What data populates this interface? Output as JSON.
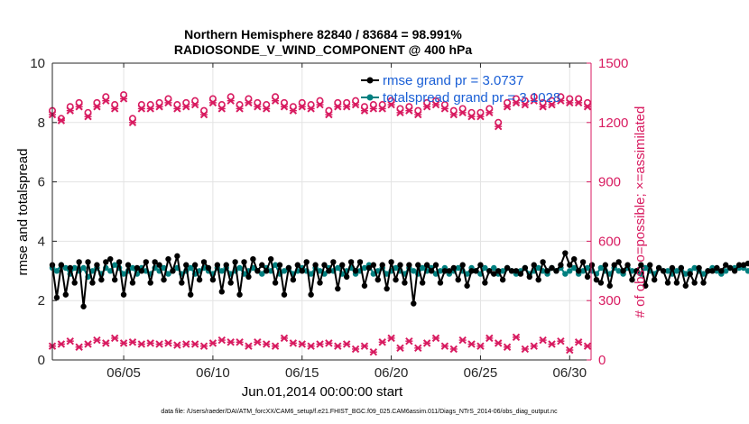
{
  "chart_data": {
    "type": "line",
    "title": "Northern Hemisphere 82840 / 83684 = 98.991%",
    "subtitle": "RADIOSONDE_V_WIND_COMPONENT @ 400 hPa",
    "xlabel": "Jun.01,2014 00:00:00 start",
    "ylabel": "rmse and totalspread",
    "ylabel_right": "# of obs: o=possible; ×=assimilated",
    "footnote": "data file: /Users/raeder/DAI/ATM_forcXX/CAM6_setup/f.e21.FHIST_BGC.f09_025.CAM6assim.011/Diags_NTrS_2014-06/obs_diag_output.nc",
    "xlim": [
      1,
      31.2
    ],
    "ylim": [
      0,
      10
    ],
    "ylim_right": [
      0,
      1500
    ],
    "x_ticks": [
      5,
      10,
      15,
      20,
      25,
      30
    ],
    "x_tick_labels": [
      "06/05",
      "06/10",
      "06/15",
      "06/20",
      "06/25",
      "06/30"
    ],
    "y_ticks": [
      0,
      2,
      4,
      6,
      8,
      10
    ],
    "y_tick_labels": [
      "0",
      "2",
      "4",
      "6",
      "8",
      "10"
    ],
    "y_right_ticks": [
      0,
      300,
      600,
      900,
      1200,
      1500
    ],
    "y_right_tick_labels": [
      "0",
      "300",
      "600",
      "900",
      "1200",
      "1500"
    ],
    "grid": true,
    "legend": [
      {
        "label": "rmse grand pr = 3.0737",
        "color": "#000000"
      },
      {
        "label": "totalspread grand pr = 3.1028",
        "color": "#008080"
      }
    ],
    "colors": {
      "rmse": "#000000",
      "spread": "#008080",
      "obs": "#d81b60",
      "axis_right": "#d81b60",
      "legend_text": "#1a5fd6"
    },
    "x_start": 1,
    "x_step": 0.25,
    "series": [
      {
        "name": "rmse",
        "axis": "left",
        "values": [
          3.2,
          2.1,
          3.2,
          2.2,
          3.1,
          2.6,
          3.3,
          1.8,
          3.3,
          2.6,
          3.2,
          2.7,
          3.3,
          3.4,
          2.7,
          3.3,
          2.2,
          3.2,
          2.6,
          3.1,
          3.0,
          3.3,
          2.6,
          3.3,
          3.2,
          2.7,
          3.4,
          3.0,
          3.5,
          2.6,
          3.2,
          2.2,
          3.2,
          2.7,
          3.3,
          3.1,
          2.7,
          3.2,
          2.3,
          3.2,
          2.6,
          3.3,
          2.2,
          3.3,
          2.8,
          3.4,
          3.0,
          3.2,
          3.0,
          3.4,
          2.6,
          3.2,
          2.2,
          3.1,
          2.7,
          3.2,
          3.0,
          3.3,
          2.2,
          3.2,
          2.6,
          3.2,
          3.0,
          3.3,
          2.4,
          3.2,
          2.8,
          3.3,
          3.0,
          3.3,
          2.5,
          3.1,
          3.2,
          2.7,
          3.2,
          2.4,
          3.3,
          2.7,
          3.2,
          2.6,
          3.2,
          1.9,
          3.2,
          2.6,
          3.2,
          3.0,
          3.2,
          2.6,
          3.0,
          3.0,
          3.1,
          2.7,
          3.2,
          2.5,
          3.0,
          3.0,
          3.2,
          2.6,
          3.0,
          2.9,
          3.0,
          2.7,
          3.1,
          3.0,
          3.0,
          2.9,
          3.1,
          2.8,
          3.2,
          2.7,
          3.3,
          3.0,
          3.1,
          3.0,
          3.2,
          3.6,
          3.2,
          3.4,
          3.0,
          3.3,
          2.8,
          3.2,
          2.7,
          2.6,
          3.2,
          2.5,
          3.2,
          3.3,
          3.0,
          3.2,
          2.7,
          3.0,
          3.2,
          2.5,
          3.2,
          2.7,
          3.1,
          3.0,
          2.6,
          3.1,
          2.6,
          3.1,
          2.5,
          2.9,
          2.6,
          3.1,
          2.6,
          3.0,
          3.0,
          3.1,
          3.0,
          3.2,
          3.1,
          3.0,
          3.2,
          3.2,
          3.25
        ]
      },
      {
        "name": "totalspread",
        "axis": "left",
        "values": [
          3.1,
          3.0,
          3.2,
          3.1,
          2.9,
          3.1,
          3.0,
          3.1,
          2.8,
          3.0,
          3.1,
          2.9,
          3.1,
          3.0,
          3.2,
          3.1,
          2.9,
          3.0,
          3.1,
          2.9,
          3.1,
          3.0,
          2.9,
          3.1,
          3.0,
          3.1,
          2.9,
          3.0,
          3.1,
          2.9,
          3.0,
          3.1,
          2.9,
          3.0,
          3.1,
          3.0,
          2.9,
          3.1,
          3.0,
          3.1,
          2.9,
          3.0,
          3.1,
          2.9,
          3.0,
          3.1,
          3.0,
          2.9,
          3.1,
          3.0,
          3.2,
          2.9,
          3.0,
          3.1,
          2.9,
          3.0,
          3.1,
          3.0,
          2.9,
          3.1,
          3.0,
          2.9,
          3.1,
          3.0,
          3.1,
          2.9,
          3.0,
          3.1,
          2.9,
          3.0,
          3.1,
          3.2,
          2.9,
          3.0,
          3.1,
          2.9,
          3.0,
          3.1,
          3.0,
          2.9,
          3.1,
          3.0,
          2.9,
          3.1,
          3.0,
          3.1,
          2.9,
          3.0,
          3.1,
          2.9,
          3.0,
          3.1,
          3.0,
          2.9,
          3.1,
          3.0,
          2.9,
          3.1,
          3.0,
          3.1,
          2.9,
          3.0,
          3.1,
          3.0,
          2.9,
          3.0,
          3.1,
          2.9,
          3.0,
          3.1,
          3.0,
          2.9,
          3.1,
          3.0,
          3.1,
          2.9,
          3.0,
          3.1,
          2.9,
          3.0,
          3.1,
          3.0,
          2.9,
          3.1,
          3.0,
          2.9,
          3.1,
          3.0,
          2.9,
          3.1,
          3.0,
          3.0,
          2.9,
          3.1,
          3.0,
          2.9,
          3.1,
          3.0,
          3.0,
          2.9,
          3.0,
          3.1,
          2.9,
          3.0,
          3.1,
          3.0,
          2.9,
          3.0,
          3.1,
          3.0,
          2.9,
          3.0,
          3.1,
          3.1,
          3.1,
          3.1,
          3.0
        ]
      },
      {
        "name": "obs_possible",
        "axis": "right",
        "marker": "o",
        "x_start": 1,
        "x_step": 0.5,
        "values": [
          1260,
          1220,
          1280,
          1300,
          1250,
          1300,
          1330,
          1290,
          1340,
          1220,
          1290,
          1290,
          1300,
          1320,
          1290,
          1300,
          1310,
          1260,
          1320,
          1290,
          1330,
          1290,
          1320,
          1300,
          1290,
          1330,
          1300,
          1280,
          1300,
          1290,
          1310,
          1260,
          1300,
          1300,
          1310,
          1280,
          1290,
          1290,
          1310,
          1270,
          1280,
          1260,
          1300,
          1310,
          1290,
          1260,
          1270,
          1250,
          1250,
          1270,
          1200,
          1300,
          1320,
          1310,
          1330,
          1300,
          1310,
          1330,
          1320,
          1320,
          1300,
          1290,
          1320,
          1220,
          1300,
          1290,
          1310,
          1280,
          1310,
          1300,
          1290,
          1300,
          1300,
          1300,
          1310,
          1290,
          1300,
          1310,
          1280,
          1280,
          1240,
          1300,
          1300,
          1300,
          1310,
          1300,
          1310,
          1290,
          1300,
          1310,
          1310,
          1220,
          1300,
          1310,
          1290,
          1300,
          1300,
          1300,
          1310,
          1300,
          1300,
          1300,
          1310,
          1300,
          1300,
          1300,
          1310,
          1300,
          1300,
          1300,
          1300,
          1300,
          1300,
          1300,
          1300,
          1300,
          1300,
          1300,
          1300,
          1300
        ]
      },
      {
        "name": "obs_assimilated",
        "axis": "right",
        "marker": "x",
        "x_start": 1,
        "x_step": 0.5,
        "values": [
          1240,
          1210,
          1260,
          1280,
          1230,
          1280,
          1310,
          1270,
          1320,
          1200,
          1270,
          1270,
          1280,
          1300,
          1270,
          1280,
          1290,
          1240,
          1300,
          1270,
          1310,
          1270,
          1300,
          1280,
          1270,
          1310,
          1280,
          1260,
          1280,
          1270,
          1290,
          1240,
          1280,
          1280,
          1290,
          1260,
          1270,
          1270,
          1290,
          1250,
          1260,
          1240,
          1280,
          1290,
          1270,
          1240,
          1250,
          1230,
          1230,
          1250,
          1180,
          1280,
          1300,
          1290,
          1310,
          1280,
          1290,
          1310,
          1300,
          1300,
          1280,
          1270,
          1300,
          1200,
          1280,
          1270,
          1290,
          1260,
          1290,
          1280,
          1270,
          1280,
          1280,
          1280,
          1290,
          1270,
          1280,
          1290,
          1260,
          1260,
          1220,
          1280,
          1280,
          1280,
          1290,
          1280,
          1290,
          1270,
          1280,
          1290,
          1290,
          1200,
          1280,
          1290,
          1270,
          1280,
          1280,
          1280,
          1290,
          1280,
          1280,
          1280,
          1290,
          1280,
          1280,
          1280,
          1290,
          1280,
          1280,
          1280,
          1280,
          1280,
          1280,
          1280,
          1280,
          1280,
          1280,
          1280,
          1280,
          1280
        ]
      },
      {
        "name": "obs_low",
        "axis": "right",
        "marker": "x",
        "x_start": 1,
        "x_step": 0.5,
        "values": [
          70,
          80,
          95,
          65,
          80,
          100,
          85,
          110,
          85,
          90,
          80,
          85,
          80,
          85,
          75,
          80,
          80,
          70,
          85,
          100,
          90,
          90,
          70,
          90,
          80,
          70,
          110,
          85,
          80,
          70,
          80,
          85,
          70,
          80,
          55,
          70,
          40,
          90,
          110,
          60,
          95,
          60,
          85,
          110,
          70,
          55,
          100,
          80,
          70,
          110,
          85,
          65,
          115,
          55,
          70,
          100,
          80,
          95,
          50,
          90,
          70,
          80,
          80,
          85,
          40,
          75,
          60,
          70,
          100,
          75,
          110,
          75,
          60,
          90,
          70,
          80,
          80,
          95,
          70,
          110
        ]
      }
    ]
  }
}
